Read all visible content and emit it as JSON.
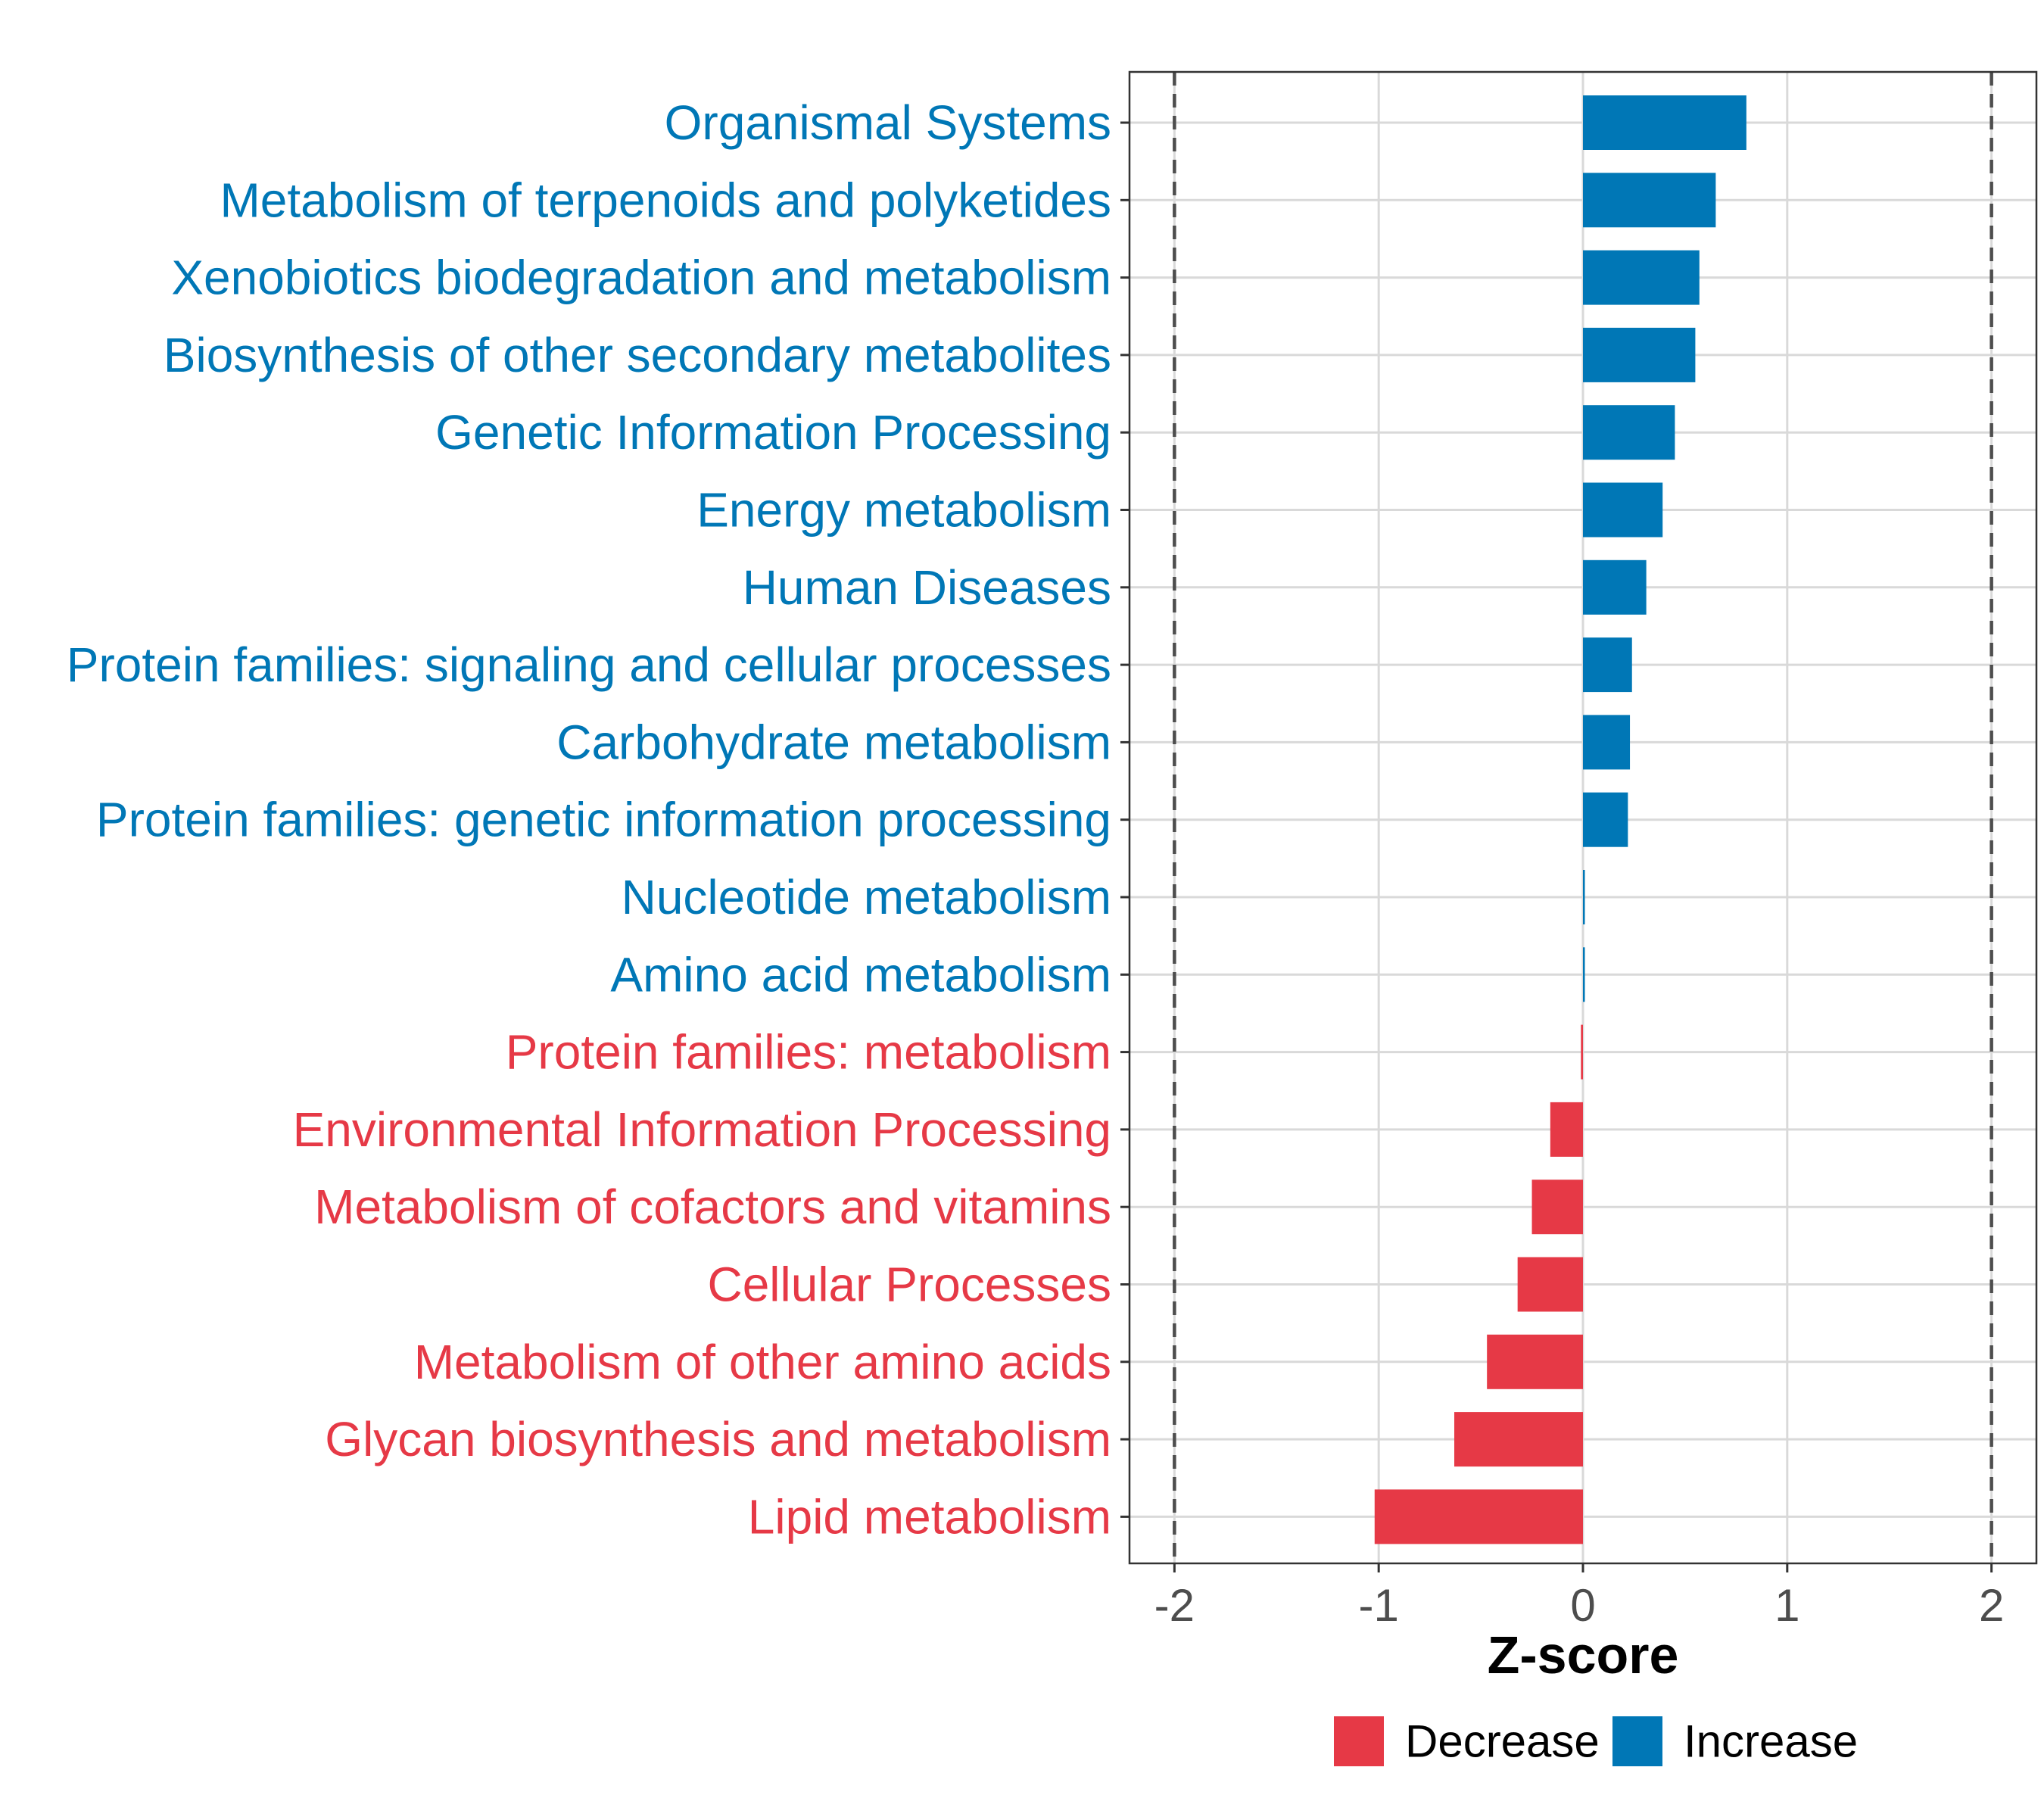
{
  "chart_data": {
    "type": "bar",
    "orientation": "horizontal",
    "categories": [
      "Organismal Systems",
      "Metabolism of terpenoids and polyketides",
      "Xenobiotics biodegradation and metabolism",
      "Biosynthesis of other secondary metabolites",
      "Genetic Information Processing",
      "Energy metabolism",
      "Human Diseases",
      "Protein families: signaling and cellular processes",
      "Carbohydrate metabolism",
      "Protein families: genetic information processing",
      "Nucleotide metabolism",
      "Amino acid metabolism",
      "Protein families: metabolism",
      "Environmental Information Processing",
      "Metabolism of cofactors and vitamins",
      "Cellular Processes",
      "Metabolism of other amino acids",
      "Glycan biosynthesis and metabolism",
      "Lipid metabolism"
    ],
    "values": [
      0.8,
      0.65,
      0.57,
      0.55,
      0.45,
      0.39,
      0.31,
      0.24,
      0.23,
      0.22,
      0.003,
      0.003,
      -0.01,
      -0.16,
      -0.25,
      -0.32,
      -0.47,
      -0.63,
      -1.02
    ],
    "groups": [
      "Increase",
      "Increase",
      "Increase",
      "Increase",
      "Increase",
      "Increase",
      "Increase",
      "Increase",
      "Increase",
      "Increase",
      "Increase",
      "Increase",
      "Decrease",
      "Decrease",
      "Decrease",
      "Decrease",
      "Decrease",
      "Decrease",
      "Decrease"
    ],
    "xlabel": "Z-score",
    "ylabel": "",
    "xlim": [
      -2.22,
      2.22
    ],
    "xticks": [
      -2,
      -1,
      0,
      1,
      2
    ],
    "xtick_labels": [
      "-2",
      "-1",
      "0",
      "1",
      "2"
    ],
    "reference_lines": [
      -2,
      2
    ],
    "grid": true,
    "legend": {
      "position": "bottom",
      "entries": [
        {
          "label": "Decrease",
          "color": "#e63946"
        },
        {
          "label": "Increase",
          "color": "#0077b6"
        }
      ]
    },
    "colors": {
      "Decrease": "#e63946",
      "Increase": "#0077b6"
    }
  }
}
